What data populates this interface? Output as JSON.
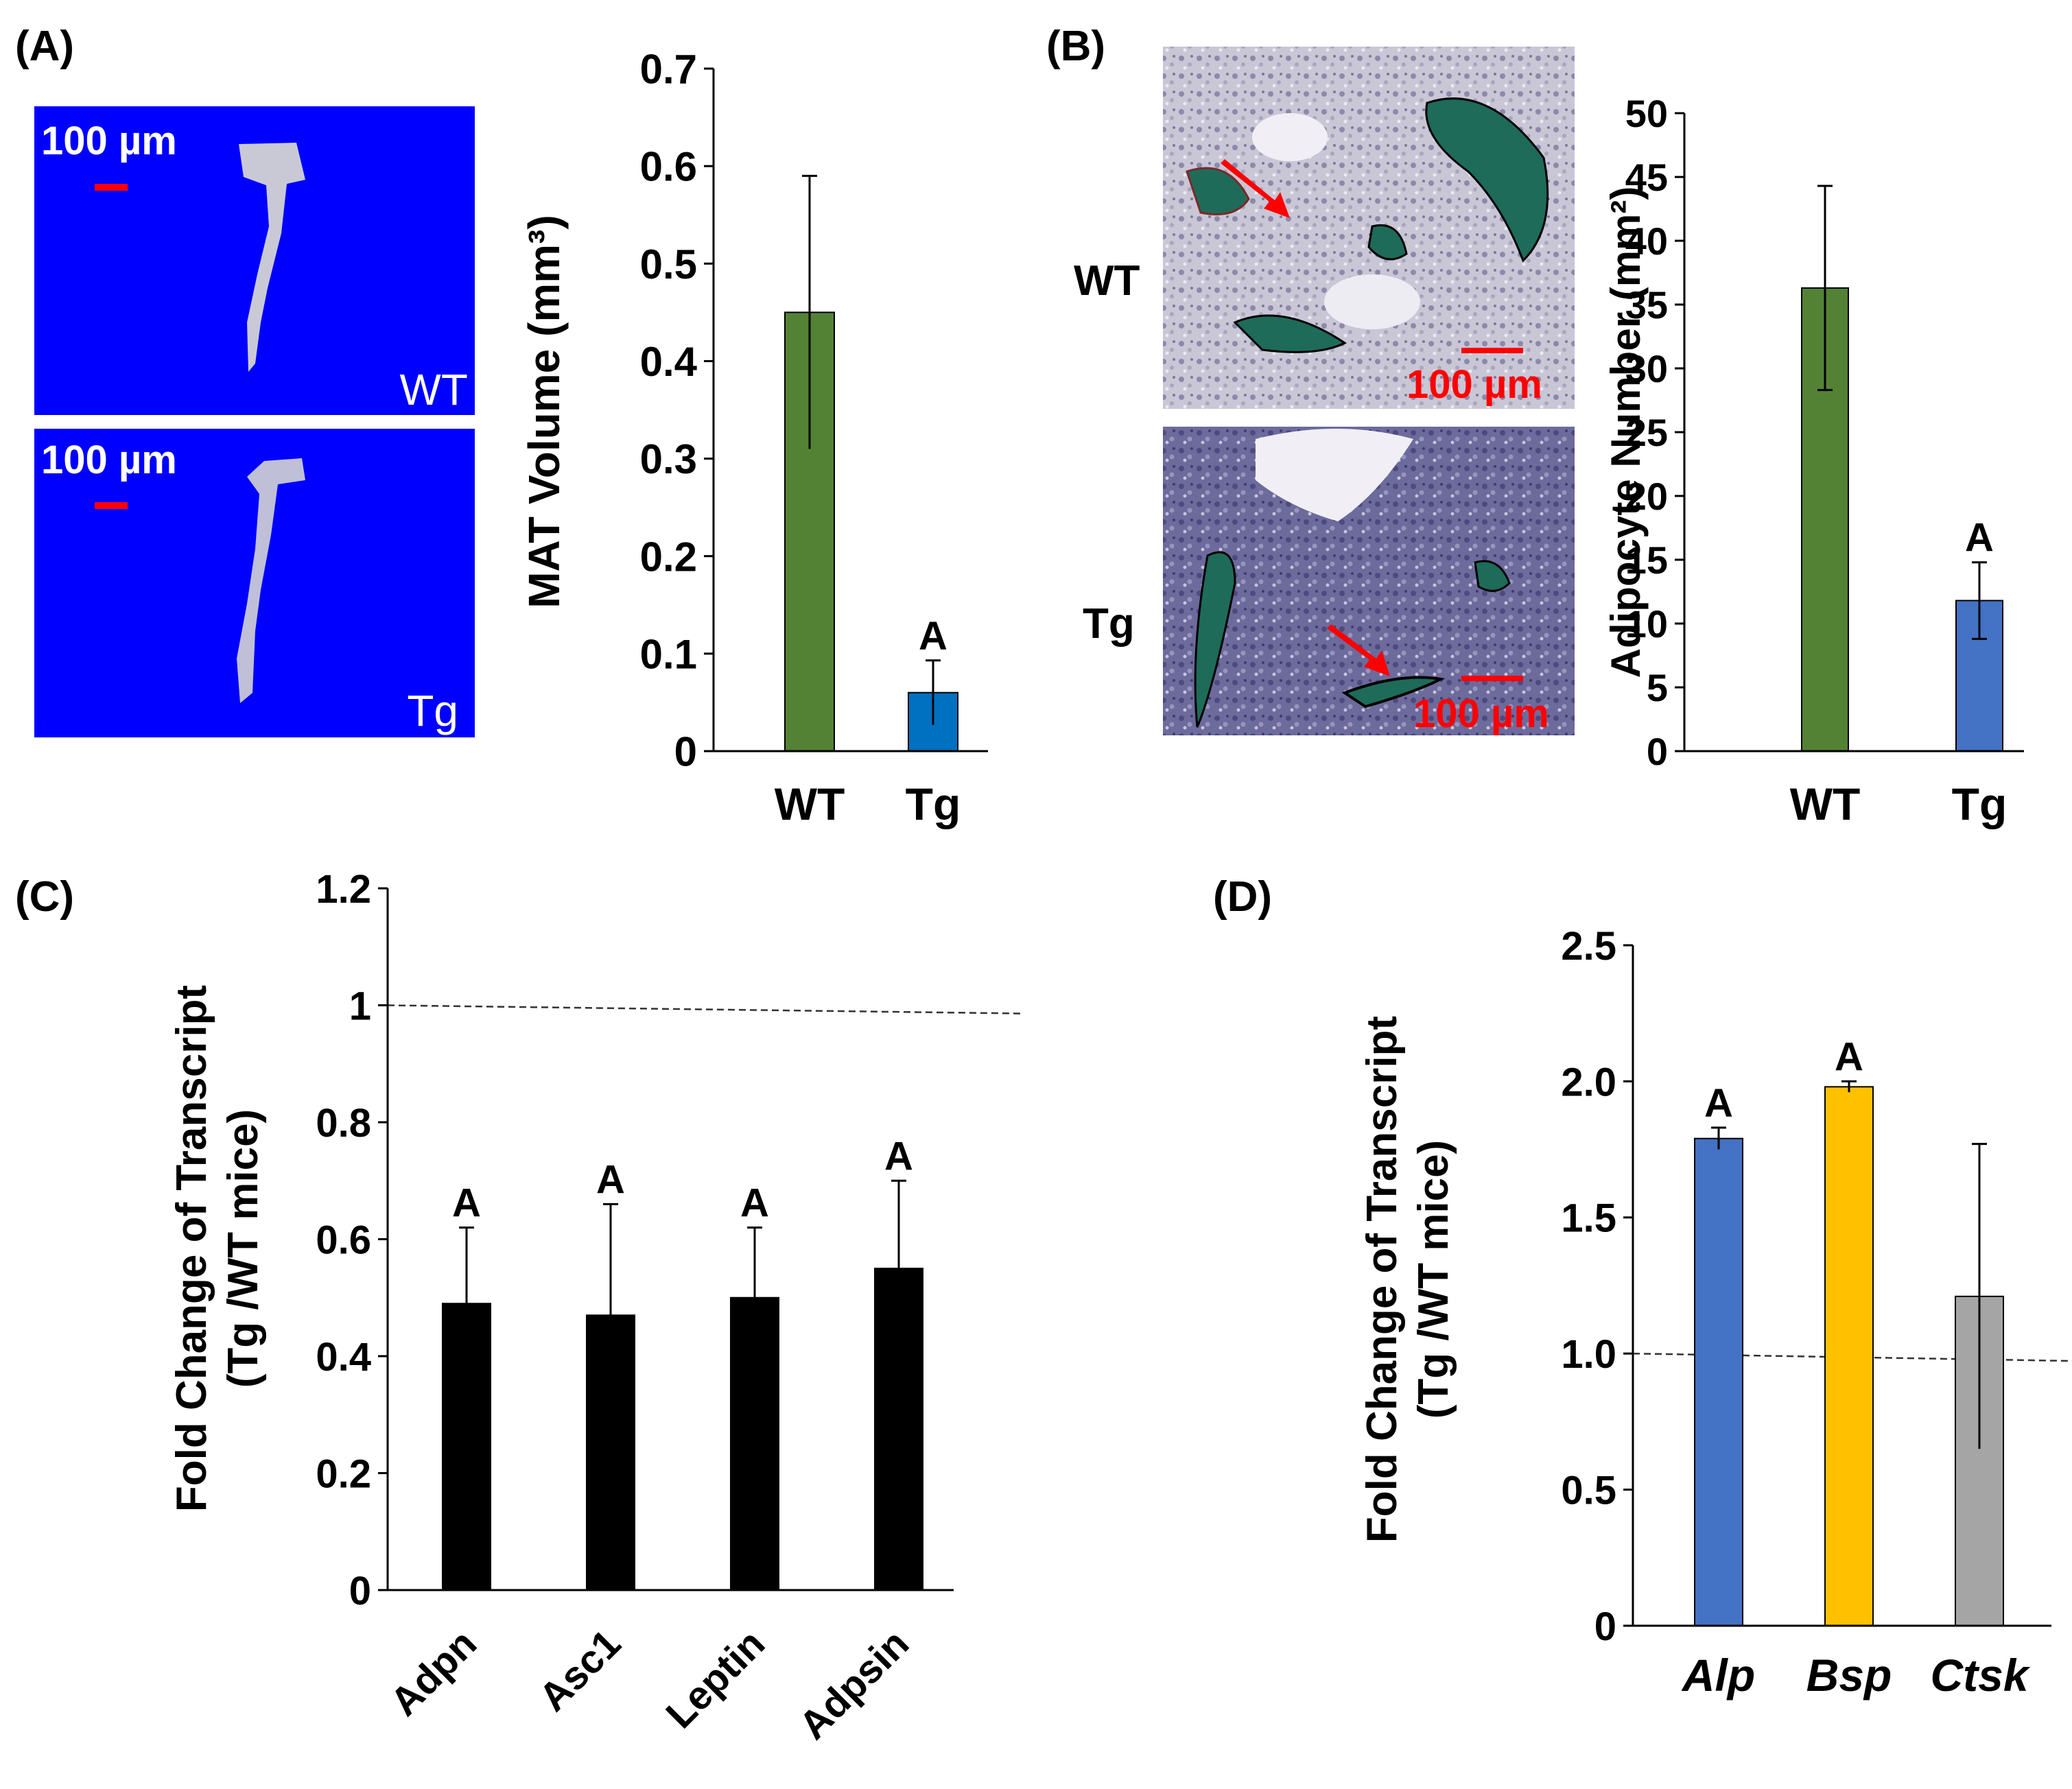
{
  "panels": {
    "a": {
      "label": "(A)",
      "micrographs": [
        {
          "name": "WT",
          "scale_bar": "100 µm"
        },
        {
          "name": "Tg",
          "scale_bar": "100 µm"
        }
      ]
    },
    "b": {
      "label": "(B)",
      "micrographs": [
        {
          "name": "WT",
          "scale_bar": "100 µm"
        },
        {
          "name": "Tg",
          "scale_bar": "100 µm"
        }
      ]
    },
    "c": {
      "label": "(C)"
    },
    "d": {
      "label": "(D)"
    }
  },
  "colors": {
    "green": "#548235",
    "blue_a": "#0070c0",
    "blue": "#4472c4",
    "gold": "#ffc000",
    "gray": "#a5a5a5",
    "black": "#000000",
    "ct_background": "#0000ff",
    "scale_red": "#ff0000"
  },
  "chart_data": [
    {
      "id": "A",
      "type": "bar",
      "categories": [
        "WT",
        "Tg"
      ],
      "values": [
        0.45,
        0.06
      ],
      "errors": [
        0.14,
        0.033
      ],
      "annotations": [
        "",
        "A"
      ],
      "colors": [
        "#548235",
        "#0070c0"
      ],
      "title": "",
      "xlabel": "",
      "ylabel": "MAT Volume (mm³)",
      "ylim": [
        0,
        0.7
      ],
      "yticks": [
        "0",
        "0.1",
        "0.2",
        "0.3",
        "0.4",
        "0.5",
        "0.6",
        "0.7"
      ]
    },
    {
      "id": "B",
      "type": "bar",
      "categories": [
        "WT",
        "Tg"
      ],
      "values": [
        36.3,
        11.8
      ],
      "errors": [
        8.0,
        3.0
      ],
      "annotations": [
        "",
        "A"
      ],
      "colors": [
        "#548235",
        "#4472c4"
      ],
      "title": "",
      "xlabel": "",
      "ylabel": "Adipocyte Number (mm²)",
      "ylim": [
        0,
        50
      ],
      "yticks": [
        "0",
        "5",
        "10",
        "15",
        "20",
        "25",
        "30",
        "35",
        "40",
        "45",
        "50"
      ]
    },
    {
      "id": "C",
      "type": "bar",
      "categories": [
        "Adpn",
        "Asc1",
        "Leptin",
        "Adpsin"
      ],
      "values": [
        0.49,
        0.47,
        0.5,
        0.55
      ],
      "errors": [
        0.13,
        0.19,
        0.12,
        0.15
      ],
      "annotations": [
        "A",
        "A",
        "A",
        "A"
      ],
      "colors": [
        "#000000",
        "#000000",
        "#000000",
        "#000000"
      ],
      "title": "",
      "xlabel": "",
      "ylabel": "Fold Change of Transcript",
      "ylabel2": "(Tg /WT mice)",
      "ylim": [
        0,
        1.2
      ],
      "yticks": [
        "0",
        "0.2",
        "0.4",
        "0.6",
        "0.8",
        "1",
        "1.2"
      ],
      "reference_line": 1.0
    },
    {
      "id": "D",
      "type": "bar",
      "categories": [
        "Alp",
        "Bsp",
        "Ctsk"
      ],
      "values": [
        1.79,
        1.98,
        1.21
      ],
      "errors": [
        0.04,
        0.02,
        0.56
      ],
      "annotations": [
        "A",
        "A",
        ""
      ],
      "colors": [
        "#4472c4",
        "#ffc000",
        "#a5a5a5"
      ],
      "title": "",
      "xlabel": "",
      "ylabel": "Fold Change of Transcript",
      "ylabel2": "(Tg /WT mice)",
      "ylim": [
        0,
        2.5
      ],
      "yticks": [
        "0",
        "0.5",
        "1.0",
        "1.5",
        "2.0",
        "2.5"
      ],
      "reference_line": 1.0
    }
  ]
}
